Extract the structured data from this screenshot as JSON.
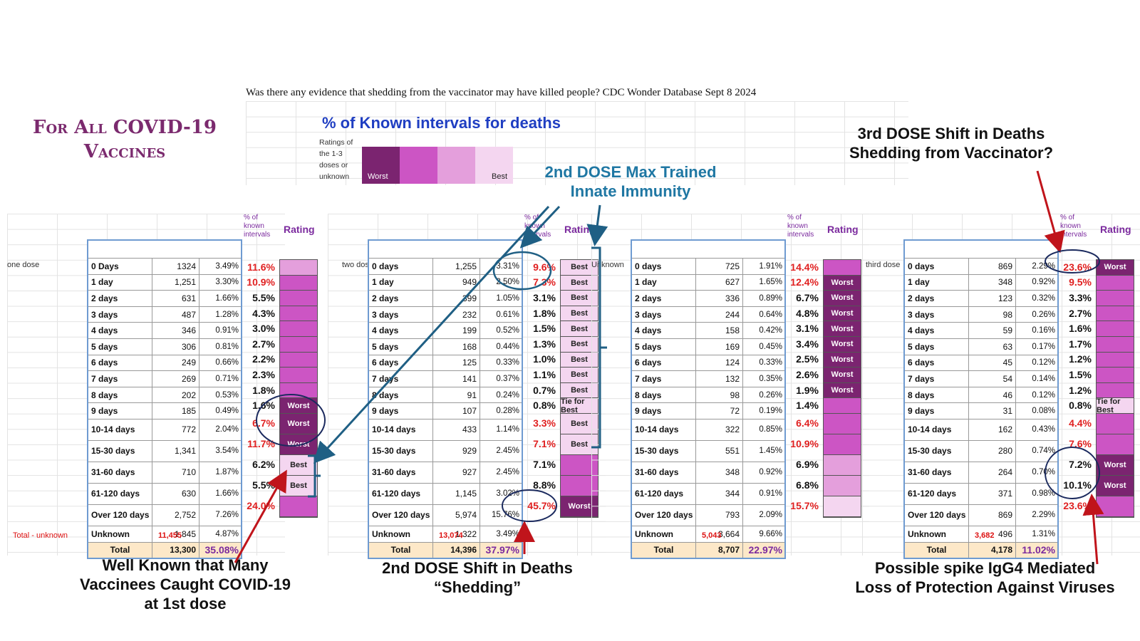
{
  "header": {
    "title": "Was there any evidence that shedding from  the vaccinator may have killed people?  CDC Wonder Database Sept 8 2024",
    "vaccine_title": "For All COVID-19 Vaccines"
  },
  "legend": {
    "title": "% of Known  intervals for deaths",
    "subtitle": "Ratings of the 1-3 doses or unknown",
    "worst_label": "Worst",
    "best_label": "Best",
    "colors": [
      "#7b2470",
      "#cc55c4",
      "#e49fdc",
      "#f4d6f0"
    ]
  },
  "column_headers": {
    "known_pct": "% of known intervals",
    "rating": "Rating",
    "total_label": "Total",
    "total_minus_unknown": "Total - unknown"
  },
  "chart_data": {
    "type": "table",
    "intervals": [
      "0 Days",
      "1 day",
      "2 days",
      "3 days",
      "4 days",
      "5 days",
      "6 days",
      "7 days",
      "8 days",
      "9 days",
      "10-14 days",
      "15-30 days",
      "31-60 days",
      "61-120 days",
      "Over 120 days",
      "Unknown"
    ],
    "panels": [
      {
        "label": "one dose",
        "interval_labels": [
          "0 Days",
          "1 day",
          "2 days",
          "3 days",
          "4 days",
          "5 days",
          "6 days",
          "7 days",
          "8 days",
          "9 days",
          "10-14 days",
          "15-30 days",
          "31-60 days",
          "61-120 days",
          "Over 120 days",
          "Unknown"
        ],
        "counts": [
          "1324",
          "1,251",
          "631",
          "487",
          "346",
          "306",
          "249",
          "269",
          "202",
          "185",
          "772",
          "1,341",
          "710",
          "630",
          "2,752",
          "1,845"
        ],
        "pct_total": [
          "3.49%",
          "3.30%",
          "1.66%",
          "1.28%",
          "0.91%",
          "0.81%",
          "0.66%",
          "0.71%",
          "0.53%",
          "0.49%",
          "2.04%",
          "3.54%",
          "1.87%",
          "1.66%",
          "7.26%",
          "4.87%"
        ],
        "pct_known": [
          "11.6%",
          "10.9%",
          "5.5%",
          "4.3%",
          "3.0%",
          "2.7%",
          "2.2%",
          "2.3%",
          "1.8%",
          "1.6%",
          "6.7%",
          "11.7%",
          "6.2%",
          "5.5%",
          "24.0%"
        ],
        "known_red": [
          true,
          true,
          false,
          false,
          false,
          false,
          false,
          false,
          false,
          false,
          true,
          true,
          false,
          false,
          true
        ],
        "rating_levels": [
          3,
          2,
          2,
          2,
          2,
          2,
          2,
          2,
          2,
          1,
          1,
          1,
          4,
          4,
          2
        ],
        "rating_labels": [
          "",
          "",
          "",
          "",
          "",
          "",
          "",
          "",
          "",
          "Worst",
          "Worst",
          "Worst",
          "Best",
          "Best",
          ""
        ],
        "total": "13,300",
        "total_pct": "35.08%",
        "total_minus_unknown": "11,455"
      },
      {
        "label": "two dose",
        "interval_labels": [
          "0 days",
          "1 day",
          "2 days",
          "3 days",
          "4 days",
          "5 days",
          "6 days",
          "7 days",
          "8 days",
          "9 days",
          "10-14 days",
          "15-30 days",
          "31-60 days",
          "61-120 days",
          "Over 120 days",
          "Unknown"
        ],
        "counts": [
          "1,255",
          "949",
          "399",
          "232",
          "199",
          "168",
          "125",
          "141",
          "91",
          "107",
          "433",
          "929",
          "927",
          "1,145",
          "5,974",
          "1,322"
        ],
        "pct_total": [
          "3.31%",
          "2.50%",
          "1.05%",
          "0.61%",
          "0.52%",
          "0.44%",
          "0.33%",
          "0.37%",
          "0.24%",
          "0.28%",
          "1.14%",
          "2.45%",
          "2.45%",
          "3.02%",
          "15.76%",
          "3.49%"
        ],
        "pct_known": [
          "9.6%",
          "7.3%",
          "3.1%",
          "1.8%",
          "1.5%",
          "1.3%",
          "1.0%",
          "1.1%",
          "0.7%",
          "0.8%",
          "3.3%",
          "7.1%",
          "7.1%",
          "8.8%",
          "45.7%"
        ],
        "known_red": [
          true,
          true,
          false,
          false,
          false,
          false,
          false,
          false,
          false,
          false,
          true,
          true,
          false,
          false,
          true
        ],
        "rating_levels": [
          4,
          4,
          4,
          4,
          4,
          4,
          4,
          4,
          4,
          4,
          4,
          4,
          2,
          2,
          1
        ],
        "rating_labels": [
          "Best",
          "Best",
          "Best",
          "Best",
          "Best",
          "Best",
          "Best",
          "Best",
          "Best",
          "Tie for Best",
          "Best",
          "Best",
          "",
          "",
          "Worst"
        ],
        "total": "14,396",
        "total_pct": "37.97%",
        "total_minus_unknown": "13,074"
      },
      {
        "label": "Unknown",
        "interval_labels": [
          "0 days",
          "1 day",
          "2 days",
          "3 days",
          "4 days",
          "5 days",
          "6 days",
          "7 days",
          "8 days",
          "9 days",
          "10-14 days",
          "15-30 days",
          "31-60 days",
          "61-120 days",
          "Over 120 days",
          "Unknown"
        ],
        "counts": [
          "725",
          "627",
          "336",
          "244",
          "158",
          "169",
          "124",
          "132",
          "98",
          "72",
          "322",
          "551",
          "348",
          "344",
          "793",
          "3,664"
        ],
        "pct_total": [
          "1.91%",
          "1.65%",
          "0.89%",
          "0.64%",
          "0.42%",
          "0.45%",
          "0.33%",
          "0.35%",
          "0.26%",
          "0.19%",
          "0.85%",
          "1.45%",
          "0.92%",
          "0.91%",
          "2.09%",
          "9.66%"
        ],
        "pct_known": [
          "14.4%",
          "12.4%",
          "6.7%",
          "4.8%",
          "3.1%",
          "3.4%",
          "2.5%",
          "2.6%",
          "1.9%",
          "1.4%",
          "6.4%",
          "10.9%",
          "6.9%",
          "6.8%",
          "15.7%"
        ],
        "known_red": [
          true,
          true,
          false,
          false,
          false,
          false,
          false,
          false,
          false,
          false,
          true,
          true,
          false,
          false,
          true
        ],
        "rating_levels": [
          2,
          1,
          1,
          1,
          1,
          1,
          1,
          1,
          1,
          2,
          2,
          2,
          3,
          3,
          4
        ],
        "rating_labels": [
          "",
          "Worst",
          "Worst",
          "Worst",
          "Worst",
          "Worst",
          "Worst",
          "Worst",
          "Worst",
          "",
          "",
          "",
          "",
          "",
          ""
        ],
        "total": "8,707",
        "total_pct": "22.97%",
        "total_minus_unknown": "5,043"
      },
      {
        "label": "third dose",
        "interval_labels": [
          "0 days",
          "1 day",
          "2 days",
          "3 days",
          "4 days",
          "5 days",
          "6 days",
          "7 days",
          "8 days",
          "9 days",
          "10-14 days",
          "15-30 days",
          "31-60 days",
          "61-120 days",
          "Over 120 days",
          "Unknown"
        ],
        "counts": [
          "869",
          "348",
          "123",
          "98",
          "59",
          "63",
          "45",
          "54",
          "46",
          "31",
          "162",
          "280",
          "264",
          "371",
          "869",
          "496"
        ],
        "pct_total": [
          "2.29%",
          "0.92%",
          "0.32%",
          "0.26%",
          "0.16%",
          "0.17%",
          "0.12%",
          "0.14%",
          "0.12%",
          "0.08%",
          "0.43%",
          "0.74%",
          "0.70%",
          "0.98%",
          "2.29%",
          "1.31%"
        ],
        "pct_known": [
          "23.6%",
          "9.5%",
          "3.3%",
          "2.7%",
          "1.6%",
          "1.7%",
          "1.2%",
          "1.5%",
          "1.2%",
          "0.8%",
          "4.4%",
          "7.6%",
          "7.2%",
          "10.1%",
          "23.6%"
        ],
        "known_red": [
          true,
          true,
          false,
          false,
          false,
          false,
          false,
          false,
          false,
          false,
          true,
          true,
          false,
          false,
          true
        ],
        "rating_levels": [
          1,
          2,
          2,
          2,
          2,
          2,
          2,
          2,
          2,
          4,
          2,
          2,
          1,
          1,
          2
        ],
        "rating_labels": [
          "Worst",
          "",
          "",
          "",
          "",
          "",
          "",
          "",
          "",
          "Tie for Best",
          "",
          "",
          "Worst",
          "Worst",
          ""
        ],
        "total": "4,178",
        "total_pct": "11.02%",
        "total_minus_unknown": "3,682"
      }
    ]
  },
  "annotations": {
    "second_dose_max": "2nd DOSE Max Trained Innate Immunity",
    "third_dose_shift": "3rd DOSE Shift in Deaths Shedding from Vaccinator?",
    "well_known": "Well Known that Many Vaccinees Caught COVID-19 at 1st dose",
    "second_dose_shift": "2nd DOSE  Shift in Deaths “Shedding”",
    "igg4": "Possible spike IgG4 Mediated Loss of Protection Against Viruses"
  }
}
